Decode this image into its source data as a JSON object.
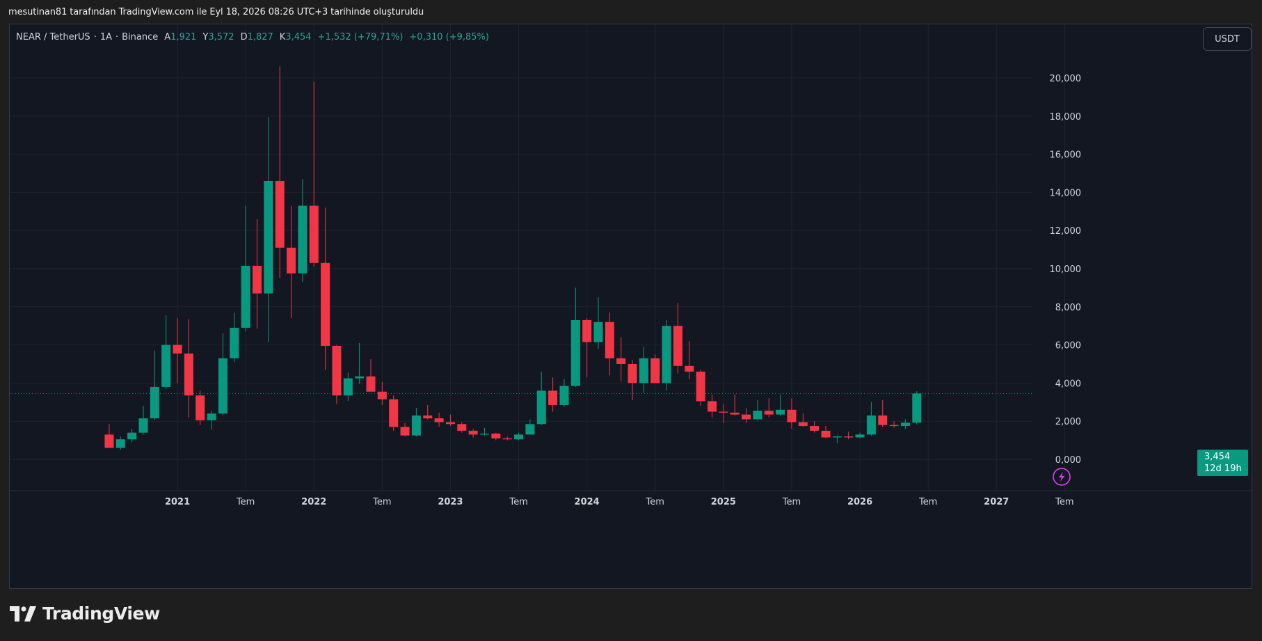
{
  "credit": "mesutinan81 tarafından TradingView.com ile Eyl 18, 2026 08:26 UTC+3 tarihinde oluşturuldu",
  "legend": {
    "symbol": "NEAR / TetherUS",
    "sep1": "·",
    "interval": "1A",
    "sep2": "·",
    "exchange": "Binance",
    "open_label": "A",
    "open": "1,921",
    "high_label": "Y",
    "high": "3,572",
    "low_label": "D",
    "low": "1,827",
    "close_label": "K",
    "close": "3,454",
    "change": "+1,532 (+79,71%)",
    "change2": "+0,310 (+9,85%)"
  },
  "currency_button": "USDT",
  "price_tag": {
    "price": "3,454",
    "countdown": "12d 19h"
  },
  "brand": "TradingView",
  "colors": {
    "up": "#089981",
    "down": "#f23645",
    "grid": "#1f232e",
    "background": "#131722"
  },
  "icons": {
    "lightning": "lightning-icon"
  },
  "chart_data": {
    "type": "candlestick",
    "interval": "monthly",
    "ylim": [
      -1.5,
      21.8
    ],
    "y_ticks": [
      "0,000",
      "2,000",
      "4,000",
      "6,000",
      "8,000",
      "10,000",
      "12,000",
      "14,000",
      "16,000",
      "18,000",
      "20,000"
    ],
    "x_ticks": [
      "2021",
      "Tem",
      "2022",
      "Tem",
      "2023",
      "Tem",
      "2024",
      "Tem",
      "2025",
      "Tem",
      "2026",
      "Tem",
      "2027",
      "Tem"
    ],
    "last_price": 3.454,
    "candles": [
      {
        "date": "2020-10",
        "o": 1.3,
        "h": 1.85,
        "l": 0.6,
        "c": 0.6
      },
      {
        "date": "2020-11",
        "o": 0.6,
        "h": 1.2,
        "l": 0.5,
        "c": 1.05
      },
      {
        "date": "2020-12",
        "o": 1.05,
        "h": 1.6,
        "l": 0.9,
        "c": 1.4
      },
      {
        "date": "2021-01",
        "o": 1.4,
        "h": 2.8,
        "l": 1.3,
        "c": 2.15
      },
      {
        "date": "2021-02",
        "o": 2.15,
        "h": 5.7,
        "l": 2.05,
        "c": 3.8
      },
      {
        "date": "2021-03",
        "o": 3.8,
        "h": 7.55,
        "l": 3.7,
        "c": 6.0
      },
      {
        "date": "2021-04",
        "o": 6.0,
        "h": 7.4,
        "l": 4.0,
        "c": 5.55
      },
      {
        "date": "2021-05",
        "o": 5.55,
        "h": 7.35,
        "l": 2.2,
        "c": 3.35
      },
      {
        "date": "2021-06",
        "o": 3.35,
        "h": 3.6,
        "l": 1.8,
        "c": 2.05
      },
      {
        "date": "2021-07",
        "o": 2.05,
        "h": 2.55,
        "l": 1.55,
        "c": 2.4
      },
      {
        "date": "2021-08",
        "o": 2.4,
        "h": 6.6,
        "l": 2.3,
        "c": 5.3
      },
      {
        "date": "2021-09",
        "o": 5.3,
        "h": 7.7,
        "l": 5.1,
        "c": 6.9
      },
      {
        "date": "2021-10",
        "o": 6.9,
        "h": 13.3,
        "l": 6.7,
        "c": 10.15
      },
      {
        "date": "2021-11",
        "o": 10.15,
        "h": 12.6,
        "l": 6.85,
        "c": 8.7
      },
      {
        "date": "2021-12",
        "o": 8.7,
        "h": 17.95,
        "l": 6.15,
        "c": 14.6
      },
      {
        "date": "2022-01",
        "o": 14.6,
        "h": 20.6,
        "l": 9.5,
        "c": 11.1
      },
      {
        "date": "2022-02",
        "o": 11.1,
        "h": 13.3,
        "l": 7.4,
        "c": 9.75
      },
      {
        "date": "2022-03",
        "o": 9.75,
        "h": 14.7,
        "l": 9.3,
        "c": 13.3
      },
      {
        "date": "2022-04",
        "o": 13.3,
        "h": 19.8,
        "l": 10.1,
        "c": 10.3
      },
      {
        "date": "2022-05",
        "o": 10.3,
        "h": 13.2,
        "l": 4.7,
        "c": 5.95
      },
      {
        "date": "2022-06",
        "o": 5.95,
        "h": 6.0,
        "l": 2.9,
        "c": 3.35
      },
      {
        "date": "2022-07",
        "o": 3.35,
        "h": 4.55,
        "l": 3.05,
        "c": 4.25
      },
      {
        "date": "2022-08",
        "o": 4.25,
        "h": 6.1,
        "l": 3.95,
        "c": 4.35
      },
      {
        "date": "2022-09",
        "o": 4.35,
        "h": 5.25,
        "l": 3.65,
        "c": 3.55
      },
      {
        "date": "2022-10",
        "o": 3.55,
        "h": 4.05,
        "l": 2.85,
        "c": 3.15
      },
      {
        "date": "2022-11",
        "o": 3.15,
        "h": 3.35,
        "l": 1.5,
        "c": 1.7
      },
      {
        "date": "2022-12",
        "o": 1.7,
        "h": 1.9,
        "l": 1.2,
        "c": 1.25
      },
      {
        "date": "2023-01",
        "o": 1.25,
        "h": 2.7,
        "l": 1.2,
        "c": 2.3
      },
      {
        "date": "2023-02",
        "o": 2.3,
        "h": 2.85,
        "l": 2.1,
        "c": 2.15
      },
      {
        "date": "2023-03",
        "o": 2.15,
        "h": 2.45,
        "l": 1.7,
        "c": 1.95
      },
      {
        "date": "2023-04",
        "o": 1.95,
        "h": 2.35,
        "l": 1.75,
        "c": 1.85
      },
      {
        "date": "2023-05",
        "o": 1.85,
        "h": 1.95,
        "l": 1.4,
        "c": 1.5
      },
      {
        "date": "2023-06",
        "o": 1.5,
        "h": 1.6,
        "l": 1.15,
        "c": 1.3
      },
      {
        "date": "2023-07",
        "o": 1.3,
        "h": 1.65,
        "l": 1.25,
        "c": 1.35
      },
      {
        "date": "2023-08",
        "o": 1.35,
        "h": 1.4,
        "l": 1.0,
        "c": 1.1
      },
      {
        "date": "2023-09",
        "o": 1.1,
        "h": 1.2,
        "l": 1.0,
        "c": 1.05
      },
      {
        "date": "2023-10",
        "o": 1.05,
        "h": 1.4,
        "l": 1.0,
        "c": 1.3
      },
      {
        "date": "2023-11",
        "o": 1.3,
        "h": 2.1,
        "l": 1.3,
        "c": 1.85
      },
      {
        "date": "2023-12",
        "o": 1.85,
        "h": 4.6,
        "l": 1.8,
        "c": 3.6
      },
      {
        "date": "2024-01",
        "o": 3.6,
        "h": 4.3,
        "l": 2.5,
        "c": 2.85
      },
      {
        "date": "2024-02",
        "o": 2.85,
        "h": 4.2,
        "l": 2.75,
        "c": 3.85
      },
      {
        "date": "2024-03",
        "o": 3.85,
        "h": 9.0,
        "l": 3.8,
        "c": 7.3
      },
      {
        "date": "2024-04",
        "o": 7.3,
        "h": 7.4,
        "l": 4.3,
        "c": 6.15
      },
      {
        "date": "2024-05",
        "o": 6.15,
        "h": 8.5,
        "l": 5.8,
        "c": 7.2
      },
      {
        "date": "2024-06",
        "o": 7.2,
        "h": 7.7,
        "l": 4.4,
        "c": 5.3
      },
      {
        "date": "2024-07",
        "o": 5.3,
        "h": 6.4,
        "l": 4.1,
        "c": 5.0
      },
      {
        "date": "2024-08",
        "o": 5.0,
        "h": 5.2,
        "l": 3.1,
        "c": 4.0
      },
      {
        "date": "2024-09",
        "o": 4.0,
        "h": 5.9,
        "l": 3.5,
        "c": 5.3
      },
      {
        "date": "2024-10",
        "o": 5.3,
        "h": 5.5,
        "l": 4.0,
        "c": 4.0
      },
      {
        "date": "2024-11",
        "o": 4.0,
        "h": 7.3,
        "l": 3.6,
        "c": 7.0
      },
      {
        "date": "2024-12",
        "o": 7.0,
        "h": 8.2,
        "l": 4.5,
        "c": 4.9
      },
      {
        "date": "2025-01",
        "o": 4.9,
        "h": 6.2,
        "l": 4.2,
        "c": 4.6
      },
      {
        "date": "2025-02",
        "o": 4.6,
        "h": 4.7,
        "l": 2.8,
        "c": 3.05
      },
      {
        "date": "2025-03",
        "o": 3.05,
        "h": 3.4,
        "l": 2.2,
        "c": 2.5
      },
      {
        "date": "2025-04",
        "o": 2.5,
        "h": 2.9,
        "l": 1.9,
        "c": 2.45
      },
      {
        "date": "2025-05",
        "o": 2.45,
        "h": 3.4,
        "l": 2.3,
        "c": 2.35
      },
      {
        "date": "2025-06",
        "o": 2.35,
        "h": 2.7,
        "l": 1.9,
        "c": 2.1
      },
      {
        "date": "2025-07",
        "o": 2.1,
        "h": 3.1,
        "l": 2.05,
        "c": 2.55
      },
      {
        "date": "2025-08",
        "o": 2.55,
        "h": 3.2,
        "l": 2.2,
        "c": 2.35
      },
      {
        "date": "2025-09",
        "o": 2.35,
        "h": 3.4,
        "l": 2.3,
        "c": 2.6
      },
      {
        "date": "2025-10",
        "o": 2.6,
        "h": 3.2,
        "l": 1.6,
        "c": 1.95
      },
      {
        "date": "2025-11",
        "o": 1.95,
        "h": 2.4,
        "l": 1.7,
        "c": 1.75
      },
      {
        "date": "2025-12",
        "o": 1.75,
        "h": 2.0,
        "l": 1.4,
        "c": 1.5
      },
      {
        "date": "2026-01",
        "o": 1.5,
        "h": 1.75,
        "l": 1.1,
        "c": 1.15
      },
      {
        "date": "2026-02",
        "o": 1.15,
        "h": 1.25,
        "l": 0.85,
        "c": 1.2
      },
      {
        "date": "2026-03",
        "o": 1.2,
        "h": 1.45,
        "l": 1.05,
        "c": 1.15
      },
      {
        "date": "2026-04",
        "o": 1.15,
        "h": 1.4,
        "l": 1.1,
        "c": 1.3
      },
      {
        "date": "2026-05",
        "o": 1.3,
        "h": 3.0,
        "l": 1.25,
        "c": 2.3
      },
      {
        "date": "2026-06",
        "o": 2.3,
        "h": 3.1,
        "l": 1.7,
        "c": 1.8
      },
      {
        "date": "2026-07",
        "o": 1.8,
        "h": 2.0,
        "l": 1.65,
        "c": 1.75
      },
      {
        "date": "2026-08",
        "o": 1.75,
        "h": 2.1,
        "l": 1.6,
        "c": 1.921
      },
      {
        "date": "2026-09",
        "o": 1.921,
        "h": 3.572,
        "l": 1.827,
        "c": 3.454
      }
    ]
  }
}
